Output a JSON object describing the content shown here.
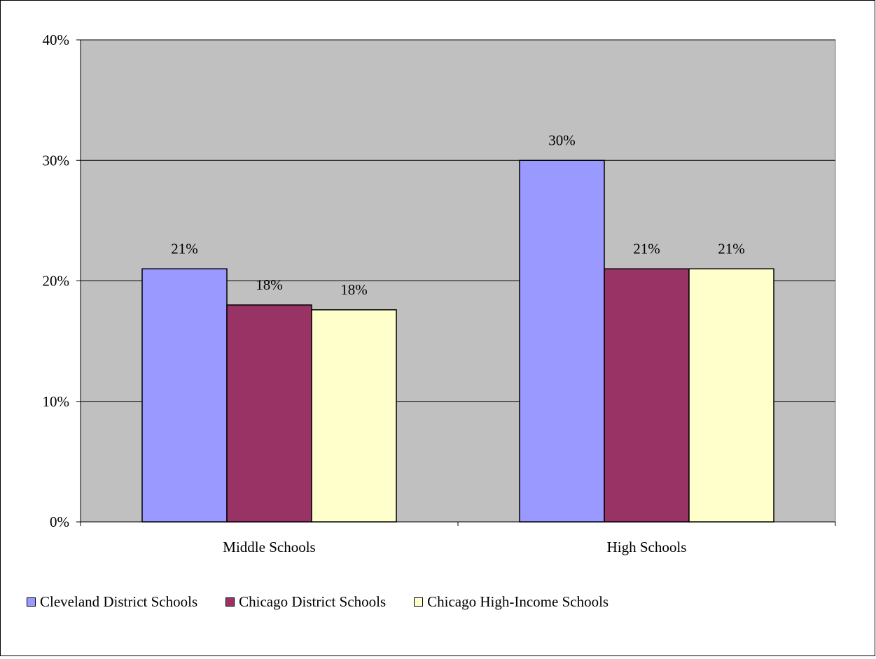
{
  "chart_data": {
    "type": "bar",
    "title": "",
    "xlabel": "",
    "ylabel": "",
    "categories": [
      "Middle Schools",
      "High Schools"
    ],
    "series": [
      {
        "name": "Cleveland District Schools",
        "values": [
          21,
          30
        ],
        "labels": [
          "21%",
          "30%"
        ],
        "color": "#9999FF"
      },
      {
        "name": "Chicago District Schools",
        "values": [
          18,
          21
        ],
        "labels": [
          "18%",
          "21%"
        ],
        "color": "#993366"
      },
      {
        "name": "Chicago High-Income Schools",
        "values": [
          17.6,
          21
        ],
        "labels": [
          "18%",
          "21%"
        ],
        "color": "#FFFFCC"
      }
    ],
    "ylim": [
      0,
      40
    ],
    "yticks": [
      "0%",
      "10%",
      "20%",
      "30%",
      "40%"
    ],
    "grid": true,
    "plot_background": "#C0C0C0",
    "legend": "bottom"
  }
}
